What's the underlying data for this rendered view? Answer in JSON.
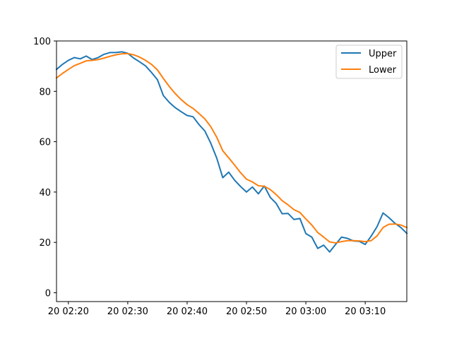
{
  "chart_data": {
    "type": "line",
    "title": "",
    "xlabel": "",
    "ylabel": "",
    "xlim": [
      "2024-01-20 02:18",
      "2024-01-20 03:17"
    ],
    "ylim": [
      -3.5,
      100
    ],
    "grid": false,
    "legend_position": "top-right",
    "x_ticks": [
      {
        "time": "2024-01-20 02:20",
        "label": "20 02:20"
      },
      {
        "time": "2024-01-20 02:30",
        "label": "20 02:30"
      },
      {
        "time": "2024-01-20 02:40",
        "label": "20 02:40"
      },
      {
        "time": "2024-01-20 02:50",
        "label": "20 02:50"
      },
      {
        "time": "2024-01-20 03:00",
        "label": "20 03:00"
      },
      {
        "time": "2024-01-20 03:10",
        "label": "20 03:10"
      }
    ],
    "y_ticks": [
      0,
      20,
      40,
      60,
      80,
      100
    ],
    "x": [
      "2024-01-20 02:18",
      "2024-01-20 02:19",
      "2024-01-20 02:20",
      "2024-01-20 02:21",
      "2024-01-20 02:22",
      "2024-01-20 02:23",
      "2024-01-20 02:24",
      "2024-01-20 02:25",
      "2024-01-20 02:26",
      "2024-01-20 02:27",
      "2024-01-20 02:28",
      "2024-01-20 02:29",
      "2024-01-20 02:30",
      "2024-01-20 02:31",
      "2024-01-20 02:32",
      "2024-01-20 02:33",
      "2024-01-20 02:34",
      "2024-01-20 02:35",
      "2024-01-20 02:36",
      "2024-01-20 02:37",
      "2024-01-20 02:38",
      "2024-01-20 02:39",
      "2024-01-20 02:40",
      "2024-01-20 02:41",
      "2024-01-20 02:42",
      "2024-01-20 02:43",
      "2024-01-20 02:44",
      "2024-01-20 02:45",
      "2024-01-20 02:46",
      "2024-01-20 02:47",
      "2024-01-20 02:48",
      "2024-01-20 02:49",
      "2024-01-20 02:50",
      "2024-01-20 02:51",
      "2024-01-20 02:52",
      "2024-01-20 02:53",
      "2024-01-20 02:54",
      "2024-01-20 02:55",
      "2024-01-20 02:56",
      "2024-01-20 02:57",
      "2024-01-20 02:58",
      "2024-01-20 02:59",
      "2024-01-20 03:00",
      "2024-01-20 03:01",
      "2024-01-20 03:02",
      "2024-01-20 03:03",
      "2024-01-20 03:04",
      "2024-01-20 03:05",
      "2024-01-20 03:06",
      "2024-01-20 03:07",
      "2024-01-20 03:08",
      "2024-01-20 03:09",
      "2024-01-20 03:10",
      "2024-01-20 03:11",
      "2024-01-20 03:12",
      "2024-01-20 03:13",
      "2024-01-20 03:14",
      "2024-01-20 03:15",
      "2024-01-20 03:16",
      "2024-01-20 03:17"
    ],
    "series": [
      {
        "name": "Upper",
        "color": "#1f77b4",
        "values": [
          88.7,
          90.7,
          92.3,
          93.4,
          92.9,
          94.0,
          92.6,
          93.4,
          94.7,
          95.4,
          95.4,
          95.7,
          95.1,
          93.2,
          91.7,
          90.1,
          87.5,
          84.6,
          78.3,
          75.6,
          73.5,
          71.9,
          70.4,
          69.9,
          66.8,
          64.2,
          59.3,
          53.4,
          45.7,
          47.9,
          44.7,
          42.2,
          40.0,
          42.0,
          39.3,
          42.4,
          37.9,
          35.5,
          31.4,
          31.5,
          29.1,
          29.5,
          23.5,
          22.1,
          17.6,
          18.9,
          16.2,
          19.2,
          22.1,
          21.6,
          20.6,
          20.4,
          19.2,
          22.5,
          26.3,
          31.7,
          29.8,
          27.6,
          25.9,
          23.6
        ]
      },
      {
        "name": "Lower",
        "color": "#ff7f0e",
        "values": [
          85.3,
          87.1,
          88.7,
          90.2,
          91.1,
          92.1,
          92.3,
          92.6,
          93.2,
          93.9,
          94.5,
          94.9,
          95.0,
          94.5,
          93.6,
          92.3,
          90.7,
          88.5,
          85.1,
          81.9,
          79.1,
          76.7,
          74.7,
          73.2,
          71.2,
          69.0,
          65.9,
          61.7,
          56.4,
          53.6,
          50.7,
          47.7,
          45.1,
          44.0,
          42.5,
          42.3,
          41.0,
          39.0,
          36.6,
          34.9,
          33.0,
          31.9,
          29.3,
          26.9,
          23.9,
          22.1,
          20.2,
          19.8,
          20.3,
          20.7,
          20.7,
          20.6,
          20.3,
          20.7,
          22.6,
          25.9,
          27.2,
          27.3,
          26.9,
          25.9
        ]
      }
    ]
  }
}
